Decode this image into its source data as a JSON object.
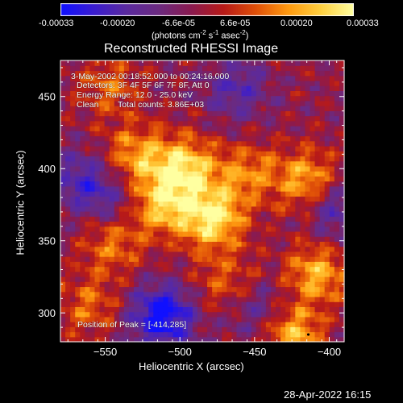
{
  "colorbar": {
    "ticks": [
      "-0.00033",
      "-0.00020",
      "-6.6e-05",
      "6.6e-05",
      "0.00020",
      "0.00033"
    ],
    "unit_main": "(photons cm",
    "unit_sup1": "-2",
    "unit_s": " s",
    "unit_sup2": "-1",
    "unit_asec": " asec",
    "unit_sup3": "-2",
    "unit_close": ")",
    "colormap": [
      "#1010ff",
      "#3a1cd0",
      "#5a2aa0",
      "#6b2a80",
      "#8a1a50",
      "#b81a18",
      "#e05008",
      "#ff9a10",
      "#ffd040",
      "#ffffa0"
    ]
  },
  "chart_data": {
    "type": "heatmap",
    "title": "Reconstructed RHESSI Image",
    "xlabel": "Heliocentric X (arcsec)",
    "ylabel": "Heliocentric Y (arcsec)",
    "xlim": [
      -580,
      -390
    ],
    "ylim": [
      280,
      475
    ],
    "vlim": [
      -0.00033,
      0.00033
    ],
    "x_ticks": [
      -550,
      -500,
      -450,
      -400
    ],
    "x_tick_labels": [
      "−550",
      "−500",
      "−450",
      "−400"
    ],
    "y_ticks": [
      300,
      350,
      400,
      450
    ],
    "y_tick_labels": [
      "300",
      "350",
      "400",
      "450"
    ],
    "peak": [
      -414,
      285
    ],
    "bright_regions": [
      {
        "x": -497,
        "y": 401,
        "amp": 0.0003
      },
      {
        "x": -512,
        "y": 375,
        "amp": 0.00026
      },
      {
        "x": -478,
        "y": 366,
        "amp": 0.00033
      },
      {
        "x": -530,
        "y": 409,
        "amp": 0.00022
      },
      {
        "x": -455,
        "y": 397,
        "amp": 0.00018
      },
      {
        "x": -415,
        "y": 392,
        "amp": 0.00024
      },
      {
        "x": -408,
        "y": 328,
        "amp": 0.00024
      },
      {
        "x": -426,
        "y": 286,
        "amp": 0.00028
      },
      {
        "x": -545,
        "y": 350,
        "amp": 0.00018
      },
      {
        "x": -560,
        "y": 305,
        "amp": 0.00016
      },
      {
        "x": -548,
        "y": 458,
        "amp": 0.00015
      },
      {
        "x": -470,
        "y": 322,
        "amp": 0.00014
      }
    ],
    "dark_regions": [
      {
        "x": -512,
        "y": 298,
        "amp": -0.00033
      },
      {
        "x": -565,
        "y": 392,
        "amp": -0.00018
      },
      {
        "x": -462,
        "y": 455,
        "amp": -0.00016
      },
      {
        "x": -395,
        "y": 372,
        "amp": -0.00017
      },
      {
        "x": -445,
        "y": 300,
        "amp": -0.00015
      },
      {
        "x": -545,
        "y": 376,
        "amp": -0.00012
      }
    ]
  },
  "annotations": {
    "time_range": "3-May-2002 00:18:52.000 to 00:24:16.000",
    "detectors": "Detectors: 3F 4F 5F 6F 7F 8F, Att 0",
    "energy": "Energy Range: 12.0 - 25.0 keV",
    "method": "Clean",
    "counts": "Total counts: 3.86E+03",
    "peak": "Position of Peak = [-414,285]"
  },
  "footer": {
    "timestamp": "28-Apr-2022 16:15"
  }
}
